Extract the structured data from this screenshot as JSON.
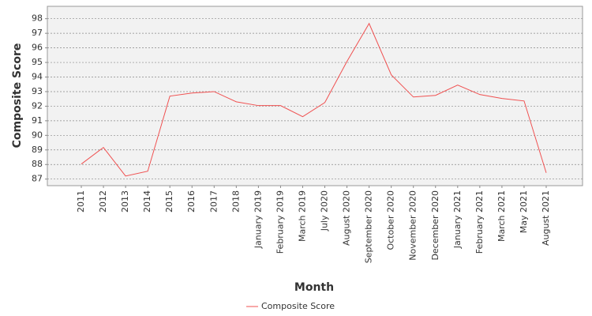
{
  "chart_data": {
    "type": "line",
    "x_label": "Month",
    "y_label": "Composite Score",
    "categories": [
      "2011",
      "2012",
      "2013",
      "2014",
      "2015",
      "2016",
      "2017",
      "2018",
      "January 2019",
      "February 2019",
      "March 2019",
      "July 2020",
      "August 2020",
      "September 2020",
      "October 2020",
      "November 2020",
      "December 2020",
      "January 2021",
      "February 2021",
      "March 2021",
      "May 2021",
      "August 2021"
    ],
    "series": [
      {
        "name": "Composite Score",
        "color": "#f05050",
        "values": [
          88.03,
          89.17,
          87.21,
          87.54,
          92.69,
          92.9,
          93.0,
          92.3,
          92.04,
          92.04,
          91.28,
          92.25,
          95.07,
          97.67,
          94.15,
          92.63,
          92.74,
          93.45,
          92.8,
          92.53,
          92.36,
          87.43
        ]
      }
    ],
    "ylim": [
      86.55,
      98.85
    ],
    "yticks": [
      87,
      88,
      89,
      90,
      91,
      92,
      93,
      94,
      95,
      96,
      97,
      98
    ],
    "grid": true,
    "legend": "bottom"
  }
}
